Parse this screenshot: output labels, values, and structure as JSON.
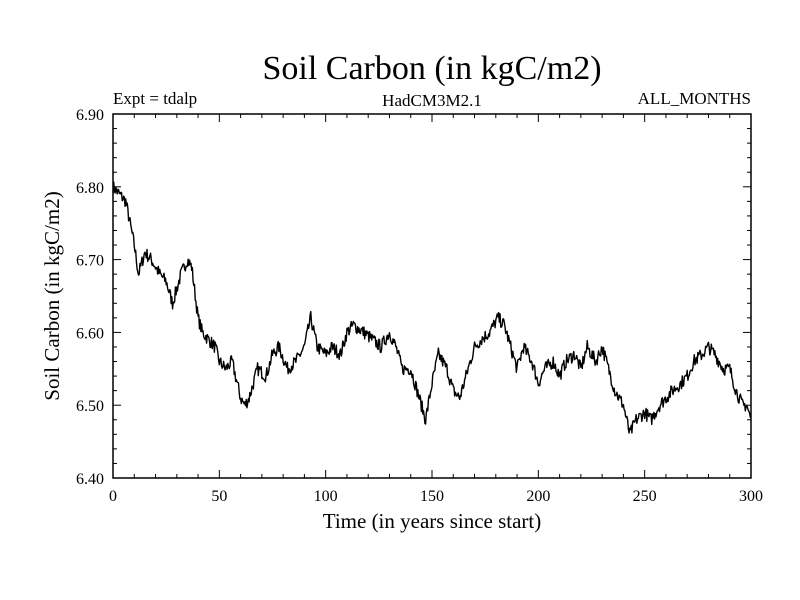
{
  "chart_data": {
    "type": "line",
    "title": "Soil Carbon (in kgC/m2)",
    "subtitle_left": "Expt = tdalp",
    "subtitle_center": "HadCM3M2.1",
    "subtitle_right": "ALL_MONTHS",
    "xlabel": "Time (in years since start)",
    "ylabel": "Soil Carbon (in kgC/m2)",
    "xlim": [
      0,
      300
    ],
    "ylim": [
      6.4,
      6.9
    ],
    "x_ticks": [
      "0",
      "50",
      "100",
      "150",
      "200",
      "250",
      "300"
    ],
    "y_ticks": [
      "6.40",
      "6.50",
      "6.60",
      "6.70",
      "6.80",
      "6.90"
    ],
    "grid": false,
    "line_color": "#000000",
    "series": [
      {
        "name": "Soil Carbon",
        "x": [
          0,
          3,
          6,
          10,
          12,
          15,
          18,
          22,
          25,
          28,
          32,
          35,
          37,
          40,
          42,
          45,
          48,
          50,
          53,
          56,
          60,
          62,
          64,
          68,
          72,
          75,
          78,
          82,
          86,
          90,
          93,
          96,
          100,
          103,
          107,
          110,
          113,
          118,
          122,
          126,
          130,
          133,
          136,
          140,
          143,
          147,
          150,
          153,
          157,
          160,
          163,
          167,
          170,
          173,
          177,
          181,
          184,
          187,
          190,
          193,
          197,
          200,
          203,
          207,
          210,
          213,
          217,
          220,
          223,
          227,
          230,
          233,
          236,
          240,
          243,
          246,
          250,
          253,
          257,
          260,
          263,
          267,
          270,
          273,
          277,
          280,
          283,
          287,
          290,
          293,
          296,
          298,
          300
        ],
        "y": [
          6.8,
          6.79,
          6.78,
          6.72,
          6.68,
          6.71,
          6.7,
          6.68,
          6.67,
          6.64,
          6.68,
          6.7,
          6.69,
          6.62,
          6.6,
          6.59,
          6.58,
          6.56,
          6.55,
          6.56,
          6.51,
          6.5,
          6.51,
          6.55,
          6.54,
          6.57,
          6.58,
          6.55,
          6.56,
          6.58,
          6.62,
          6.58,
          6.57,
          6.58,
          6.57,
          6.6,
          6.61,
          6.6,
          6.59,
          6.58,
          6.6,
          6.58,
          6.55,
          6.55,
          6.52,
          6.48,
          6.53,
          6.57,
          6.55,
          6.52,
          6.51,
          6.55,
          6.58,
          6.59,
          6.6,
          6.62,
          6.61,
          6.58,
          6.55,
          6.58,
          6.56,
          6.53,
          6.55,
          6.56,
          6.54,
          6.56,
          6.57,
          6.55,
          6.58,
          6.56,
          6.58,
          6.55,
          6.52,
          6.5,
          6.46,
          6.48,
          6.49,
          6.48,
          6.5,
          6.51,
          6.52,
          6.53,
          6.54,
          6.56,
          6.57,
          6.58,
          6.57,
          6.55,
          6.55,
          6.52,
          6.5,
          6.5,
          6.48
        ]
      }
    ]
  }
}
